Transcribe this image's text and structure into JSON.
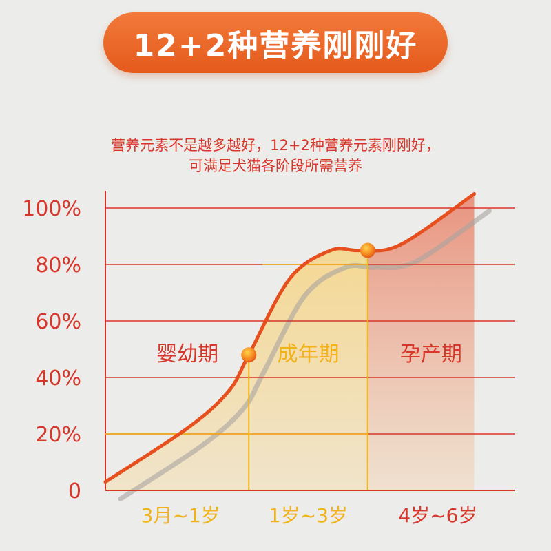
{
  "header": {
    "title": "12+2种营养刚刚好",
    "subtitle_line1": "营养元素不是越多越好，12+2种营养元素刚刚好，",
    "subtitle_line2": "可满足犬猫各阶段所需营养"
  },
  "colors": {
    "title_bg": "#e8621f",
    "axis_red": "#d7362b",
    "curve": "#e5501e",
    "yellow_line": "#f2b51a",
    "stage_text": "#d7362b",
    "x_label_yellow": "#f2b21a",
    "x_label_red": "#d7362b"
  },
  "chart_data": {
    "type": "area",
    "ylim": [
      0,
      100
    ],
    "y_ticks": [
      "0",
      "20%",
      "40%",
      "60%",
      "80%",
      "100%"
    ],
    "y_tick_values": [
      0,
      20,
      40,
      60,
      80,
      100
    ],
    "stages": [
      {
        "name": "婴幼期",
        "range_label": "3月~1岁"
      },
      {
        "name": "成年期",
        "range_label": "1岁~3岁"
      },
      {
        "name": "孕产期",
        "range_label": "4岁~6岁"
      }
    ],
    "series": [
      {
        "points": [
          [
            0,
            3
          ],
          [
            20,
            22
          ],
          [
            30,
            35
          ],
          [
            35,
            48
          ],
          [
            45,
            75
          ],
          [
            55,
            85
          ],
          [
            62,
            85
          ],
          [
            72,
            87
          ],
          [
            90,
            105
          ]
        ]
      }
    ],
    "markers": [
      {
        "x": 35,
        "y": 48
      },
      {
        "x": 64,
        "y": 85
      }
    ],
    "boundary_x": [
      35,
      64
    ]
  }
}
